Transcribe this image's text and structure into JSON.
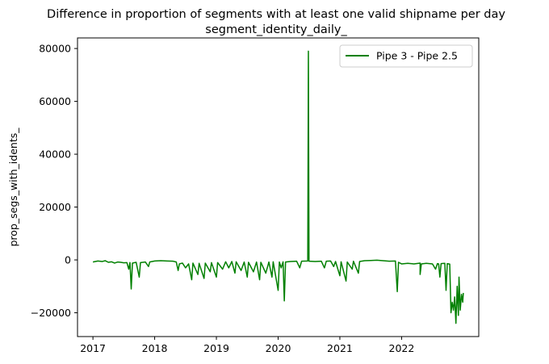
{
  "chart_data": {
    "type": "line",
    "title": "Difference in proportion of segments with at least one valid shipname per day",
    "subtitle": "segment_identity_daily_",
    "xlabel": "",
    "ylabel": "prop_segs_with_idents_",
    "xlim": [
      2016.75,
      2023.25
    ],
    "ylim": [
      -29000,
      84000
    ],
    "x_ticks": [
      "2017",
      "2018",
      "2019",
      "2020",
      "2021",
      "2022"
    ],
    "y_ticks": [
      -20000,
      0,
      20000,
      40000,
      60000,
      80000
    ],
    "y_tick_labels": [
      "−20000",
      "0",
      "20000",
      "40000",
      "60000",
      "80000"
    ],
    "grid": false,
    "legend_position": "top-right",
    "series": [
      {
        "name": "Pipe 3 - Pipe 2.5",
        "color": "#008000",
        "points": [
          [
            2017.0,
            -800
          ],
          [
            2017.08,
            -400
          ],
          [
            2017.15,
            -600
          ],
          [
            2017.2,
            -300
          ],
          [
            2017.25,
            -900
          ],
          [
            2017.3,
            -700
          ],
          [
            2017.35,
            -1200
          ],
          [
            2017.4,
            -800
          ],
          [
            2017.45,
            -900
          ],
          [
            2017.5,
            -1100
          ],
          [
            2017.55,
            -1000
          ],
          [
            2017.58,
            -3500
          ],
          [
            2017.6,
            -1000
          ],
          [
            2017.62,
            -11000
          ],
          [
            2017.64,
            -1200
          ],
          [
            2017.7,
            -900
          ],
          [
            2017.75,
            -6500
          ],
          [
            2017.77,
            -1000
          ],
          [
            2017.85,
            -800
          ],
          [
            2017.9,
            -2500
          ],
          [
            2017.92,
            -800
          ],
          [
            2018.0,
            -400
          ],
          [
            2018.1,
            -300
          ],
          [
            2018.2,
            -400
          ],
          [
            2018.3,
            -500
          ],
          [
            2018.35,
            -800
          ],
          [
            2018.38,
            -4000
          ],
          [
            2018.4,
            -1500
          ],
          [
            2018.45,
            -1200
          ],
          [
            2018.5,
            -3000
          ],
          [
            2018.55,
            -1500
          ],
          [
            2018.6,
            -7500
          ],
          [
            2018.62,
            -1200
          ],
          [
            2018.7,
            -5500
          ],
          [
            2018.72,
            -1300
          ],
          [
            2018.8,
            -7000
          ],
          [
            2018.82,
            -1200
          ],
          [
            2018.9,
            -4500
          ],
          [
            2018.92,
            -1000
          ],
          [
            2019.0,
            -6500
          ],
          [
            2019.02,
            -1000
          ],
          [
            2019.1,
            -3500
          ],
          [
            2019.15,
            -700
          ],
          [
            2019.2,
            -3000
          ],
          [
            2019.25,
            -600
          ],
          [
            2019.3,
            -5000
          ],
          [
            2019.32,
            -700
          ],
          [
            2019.4,
            -4000
          ],
          [
            2019.45,
            -800
          ],
          [
            2019.5,
            -6500
          ],
          [
            2019.52,
            -900
          ],
          [
            2019.6,
            -4500
          ],
          [
            2019.65,
            -800
          ],
          [
            2019.7,
            -7500
          ],
          [
            2019.72,
            -900
          ],
          [
            2019.8,
            -5000
          ],
          [
            2019.85,
            -800
          ],
          [
            2019.9,
            -6500
          ],
          [
            2019.92,
            -700
          ],
          [
            2020.0,
            -11500
          ],
          [
            2020.02,
            -800
          ],
          [
            2020.05,
            -3000
          ],
          [
            2020.08,
            -700
          ],
          [
            2020.1,
            -15500
          ],
          [
            2020.12,
            -800
          ],
          [
            2020.2,
            -600
          ],
          [
            2020.3,
            -500
          ],
          [
            2020.35,
            -3000
          ],
          [
            2020.38,
            -500
          ],
          [
            2020.48,
            -400
          ],
          [
            2020.49,
            79000
          ],
          [
            2020.5,
            -500
          ],
          [
            2020.6,
            -600
          ],
          [
            2020.7,
            -500
          ],
          [
            2020.75,
            -3000
          ],
          [
            2020.78,
            -500
          ],
          [
            2020.85,
            -400
          ],
          [
            2020.9,
            -2500
          ],
          [
            2020.93,
            -600
          ],
          [
            2021.0,
            -6000
          ],
          [
            2021.02,
            -700
          ],
          [
            2021.1,
            -8000
          ],
          [
            2021.12,
            -800
          ],
          [
            2021.2,
            -3500
          ],
          [
            2021.22,
            -500
          ],
          [
            2021.3,
            -5000
          ],
          [
            2021.32,
            -600
          ],
          [
            2021.4,
            -300
          ],
          [
            2021.5,
            -200
          ],
          [
            2021.6,
            -100
          ],
          [
            2021.7,
            -300
          ],
          [
            2021.8,
            -500
          ],
          [
            2021.9,
            -400
          ],
          [
            2021.93,
            -12000
          ],
          [
            2021.95,
            -900
          ],
          [
            2022.0,
            -1500
          ],
          [
            2022.1,
            -1300
          ],
          [
            2022.2,
            -1500
          ],
          [
            2022.3,
            -1200
          ],
          [
            2022.3,
            -5500
          ],
          [
            2022.32,
            -1500
          ],
          [
            2022.4,
            -1300
          ],
          [
            2022.5,
            -1500
          ],
          [
            2022.55,
            -3500
          ],
          [
            2022.58,
            -1400
          ],
          [
            2022.6,
            -1500
          ],
          [
            2022.62,
            -6500
          ],
          [
            2022.64,
            -1400
          ],
          [
            2022.7,
            -1300
          ],
          [
            2022.72,
            -11500
          ],
          [
            2022.74,
            -1400
          ],
          [
            2022.78,
            -1600
          ],
          [
            2022.8,
            -20000
          ],
          [
            2022.82,
            -16000
          ],
          [
            2022.84,
            -19000
          ],
          [
            2022.86,
            -14000
          ],
          [
            2022.88,
            -24000
          ],
          [
            2022.9,
            -10000
          ],
          [
            2022.92,
            -21000
          ],
          [
            2022.93,
            -6500
          ],
          [
            2022.95,
            -19000
          ],
          [
            2022.97,
            -13000
          ],
          [
            2022.99,
            -16000
          ],
          [
            2023.0,
            -12500
          ]
        ]
      }
    ]
  }
}
